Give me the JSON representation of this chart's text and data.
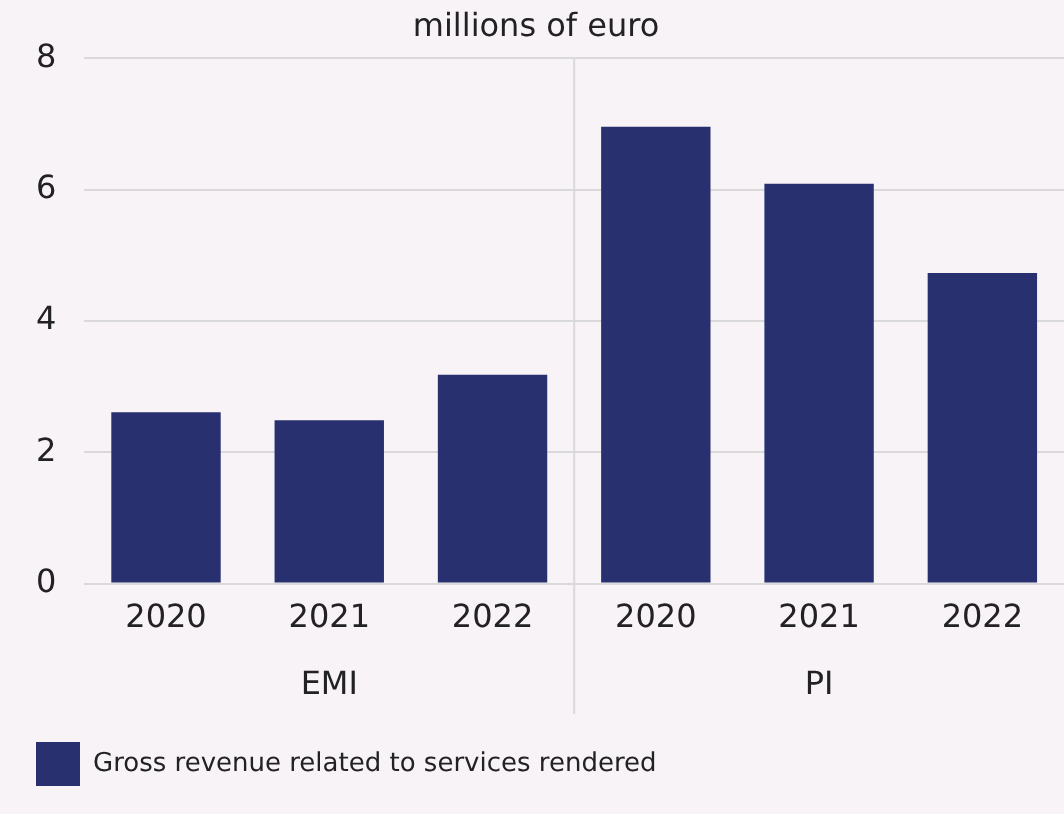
{
  "chart_data": {
    "type": "bar",
    "title": "millions of euro",
    "categories": [
      "2020",
      "2021",
      "2022",
      "2020",
      "2021",
      "2022"
    ],
    "series": [
      {
        "name": "Gross revenue related to services rendered",
        "color": "#29306f",
        "values": [
          2.61,
          2.49,
          3.18,
          6.96,
          6.09,
          4.73
        ]
      }
    ],
    "annotations": [
      "EMI",
      "PI"
    ],
    "ylim": [
      0,
      8
    ],
    "yticks": [
      0,
      2,
      4,
      6,
      8
    ],
    "grid": "y",
    "legend": "bottom left"
  }
}
